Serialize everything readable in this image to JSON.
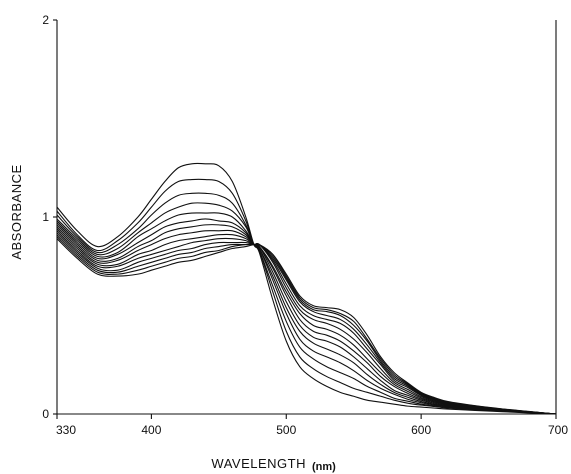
{
  "chart_data": {
    "type": "line",
    "xlabel": "WAVELENGTH",
    "xunit": "(nm)",
    "ylabel": "ABSORBANCE",
    "xlim": [
      330,
      700
    ],
    "ylim": [
      0,
      2
    ],
    "x_ticks": [
      330,
      400,
      500,
      600,
      700
    ],
    "x_tick_labels": [
      "330",
      "400",
      "500",
      "600",
      "700"
    ],
    "y_ticks": [
      0,
      1,
      2
    ],
    "y_tick_labels": [
      "0",
      "1",
      "2"
    ],
    "grid": false,
    "x": [
      330,
      345,
      360,
      375,
      390,
      400,
      410,
      420,
      430,
      440,
      450,
      460,
      470,
      476,
      480,
      490,
      500,
      510,
      520,
      530,
      540,
      550,
      560,
      570,
      580,
      590,
      600,
      610,
      620,
      640,
      660,
      680,
      700
    ],
    "series": [
      {
        "values": [
          1.05,
          0.93,
          0.85,
          0.9,
          1.0,
          1.09,
          1.18,
          1.25,
          1.27,
          1.27,
          1.26,
          1.18,
          1.0,
          0.86,
          0.82,
          0.58,
          0.37,
          0.24,
          0.18,
          0.14,
          0.11,
          0.09,
          0.07,
          0.06,
          0.05,
          0.04,
          0.035,
          0.03,
          0.025,
          0.018,
          0.012,
          0.006,
          0.0
        ]
      },
      {
        "values": [
          1.03,
          0.91,
          0.83,
          0.88,
          0.97,
          1.05,
          1.13,
          1.18,
          1.19,
          1.19,
          1.18,
          1.12,
          0.98,
          0.86,
          0.83,
          0.62,
          0.42,
          0.29,
          0.23,
          0.19,
          0.16,
          0.13,
          0.11,
          0.09,
          0.07,
          0.055,
          0.045,
          0.038,
          0.03,
          0.021,
          0.014,
          0.007,
          0.0
        ]
      },
      {
        "values": [
          1.01,
          0.9,
          0.82,
          0.86,
          0.94,
          1.01,
          1.07,
          1.11,
          1.12,
          1.12,
          1.11,
          1.07,
          0.96,
          0.86,
          0.83,
          0.65,
          0.47,
          0.34,
          0.28,
          0.24,
          0.21,
          0.18,
          0.14,
          0.11,
          0.08,
          0.065,
          0.05,
          0.042,
          0.034,
          0.024,
          0.016,
          0.008,
          0.0
        ]
      },
      {
        "values": [
          0.99,
          0.89,
          0.81,
          0.84,
          0.92,
          0.97,
          1.02,
          1.05,
          1.07,
          1.07,
          1.06,
          1.03,
          0.95,
          0.86,
          0.84,
          0.68,
          0.51,
          0.38,
          0.32,
          0.29,
          0.26,
          0.22,
          0.17,
          0.13,
          0.1,
          0.075,
          0.057,
          0.046,
          0.037,
          0.026,
          0.017,
          0.008,
          0.0
        ]
      },
      {
        "values": [
          0.98,
          0.88,
          0.8,
          0.82,
          0.9,
          0.94,
          0.98,
          1.01,
          1.02,
          1.02,
          1.02,
          1.0,
          0.93,
          0.86,
          0.84,
          0.7,
          0.54,
          0.42,
          0.36,
          0.33,
          0.3,
          0.26,
          0.2,
          0.15,
          0.11,
          0.085,
          0.063,
          0.05,
          0.04,
          0.028,
          0.018,
          0.009,
          0.0
        ]
      },
      {
        "values": [
          0.97,
          0.87,
          0.79,
          0.81,
          0.87,
          0.91,
          0.95,
          0.97,
          0.98,
          0.99,
          0.98,
          0.97,
          0.92,
          0.86,
          0.85,
          0.72,
          0.57,
          0.45,
          0.39,
          0.37,
          0.34,
          0.29,
          0.23,
          0.17,
          0.12,
          0.095,
          0.07,
          0.055,
          0.043,
          0.03,
          0.019,
          0.009,
          0.0
        ]
      },
      {
        "values": [
          0.96,
          0.86,
          0.78,
          0.79,
          0.85,
          0.88,
          0.92,
          0.94,
          0.95,
          0.96,
          0.96,
          0.95,
          0.91,
          0.86,
          0.85,
          0.74,
          0.6,
          0.48,
          0.42,
          0.4,
          0.37,
          0.32,
          0.26,
          0.19,
          0.14,
          0.105,
          0.076,
          0.06,
          0.046,
          0.032,
          0.02,
          0.01,
          0.0
        ]
      },
      {
        "values": [
          0.95,
          0.85,
          0.77,
          0.78,
          0.83,
          0.86,
          0.89,
          0.91,
          0.92,
          0.93,
          0.93,
          0.93,
          0.9,
          0.86,
          0.85,
          0.75,
          0.62,
          0.51,
          0.45,
          0.43,
          0.4,
          0.35,
          0.28,
          0.21,
          0.15,
          0.115,
          0.082,
          0.064,
          0.049,
          0.034,
          0.021,
          0.01,
          0.0
        ]
      },
      {
        "values": [
          0.94,
          0.84,
          0.76,
          0.76,
          0.81,
          0.83,
          0.86,
          0.88,
          0.89,
          0.9,
          0.91,
          0.91,
          0.89,
          0.86,
          0.86,
          0.77,
          0.64,
          0.53,
          0.48,
          0.46,
          0.43,
          0.38,
          0.31,
          0.23,
          0.16,
          0.125,
          0.088,
          0.068,
          0.052,
          0.036,
          0.022,
          0.011,
          0.0
        ]
      },
      {
        "values": [
          0.93,
          0.83,
          0.75,
          0.75,
          0.79,
          0.81,
          0.83,
          0.85,
          0.87,
          0.88,
          0.89,
          0.89,
          0.88,
          0.86,
          0.86,
          0.78,
          0.66,
          0.55,
          0.5,
          0.48,
          0.46,
          0.41,
          0.33,
          0.25,
          0.17,
          0.135,
          0.094,
          0.072,
          0.055,
          0.038,
          0.023,
          0.011,
          0.0
        ]
      },
      {
        "values": [
          0.92,
          0.82,
          0.74,
          0.73,
          0.77,
          0.79,
          0.81,
          0.83,
          0.84,
          0.86,
          0.87,
          0.87,
          0.87,
          0.86,
          0.86,
          0.79,
          0.68,
          0.57,
          0.52,
          0.5,
          0.48,
          0.43,
          0.35,
          0.26,
          0.18,
          0.142,
          0.098,
          0.075,
          0.057,
          0.039,
          0.024,
          0.012,
          0.0
        ]
      },
      {
        "values": [
          0.91,
          0.81,
          0.73,
          0.72,
          0.75,
          0.77,
          0.79,
          0.81,
          0.82,
          0.84,
          0.85,
          0.86,
          0.86,
          0.86,
          0.86,
          0.8,
          0.69,
          0.58,
          0.53,
          0.52,
          0.5,
          0.45,
          0.37,
          0.27,
          0.19,
          0.148,
          0.102,
          0.078,
          0.059,
          0.04,
          0.025,
          0.012,
          0.0
        ]
      },
      {
        "values": [
          0.9,
          0.8,
          0.72,
          0.71,
          0.73,
          0.75,
          0.77,
          0.79,
          0.8,
          0.82,
          0.83,
          0.85,
          0.86,
          0.86,
          0.86,
          0.81,
          0.7,
          0.59,
          0.54,
          0.53,
          0.51,
          0.47,
          0.38,
          0.28,
          0.2,
          0.153,
          0.106,
          0.08,
          0.061,
          0.041,
          0.025,
          0.012,
          0.0
        ]
      },
      {
        "values": [
          0.89,
          0.79,
          0.71,
          0.7,
          0.71,
          0.73,
          0.75,
          0.77,
          0.78,
          0.8,
          0.82,
          0.84,
          0.85,
          0.86,
          0.86,
          0.81,
          0.71,
          0.6,
          0.55,
          0.54,
          0.53,
          0.49,
          0.4,
          0.29,
          0.21,
          0.158,
          0.11,
          0.083,
          0.063,
          0.042,
          0.026,
          0.013,
          0.0
        ]
      }
    ]
  }
}
